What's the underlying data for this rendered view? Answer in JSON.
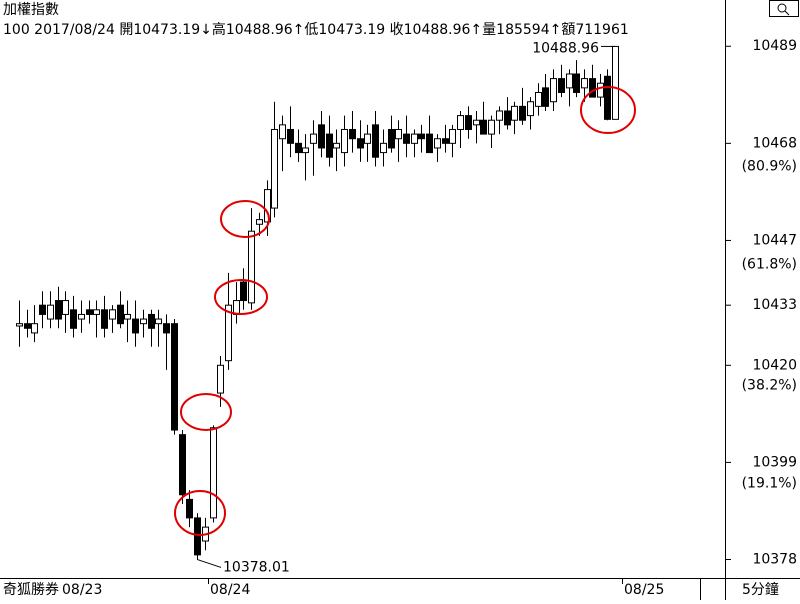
{
  "chart_data": {
    "type": "candlestick",
    "title": "加權指數",
    "subtitle": "100 2017/08/24 開10473.19↓高10488.96↑低10473.19 收10488.96↑量185594↑額711961",
    "open": [
      10428.5,
      10429,
      10427,
      10433,
      10430,
      10434,
      10431,
      10432,
      10430,
      10432,
      10431,
      10432,
      10430,
      10433,
      10430,
      10430,
      10429,
      10431,
      10429,
      10429,
      10429,
      10405,
      10391,
      10387,
      10382,
      10387,
      10414,
      10421,
      10431,
      10438,
      10433.5,
      10450.5,
      10451,
      10454,
      10469,
      10471,
      10468,
      10466,
      10468,
      10472,
      10470,
      10467,
      10466,
      10471,
      10469,
      10468,
      10472,
      10466,
      10471,
      10469,
      10470,
      10468,
      10470,
      10470,
      10467,
      10469,
      10468,
      10471,
      10474,
      10472,
      10473,
      10470,
      10473,
      10475,
      10473,
      10476,
      10474,
      10476,
      10480,
      10477,
      10482,
      10480,
      10483,
      10480,
      10482,
      10478,
      10482.5,
      10473.19
    ],
    "high": [
      10434,
      10432,
      10433,
      10436,
      10436,
      10437,
      10436,
      10435,
      10434,
      10434,
      10434,
      10435,
      10433,
      10436,
      10434,
      10434,
      10432,
      10432,
      10432,
      10431,
      10430,
      10406,
      10393,
      10388,
      10387,
      10407,
      10422,
      10440,
      10438,
      10441,
      10454,
      10453,
      10460,
      10477,
      10474,
      10476,
      10471,
      10470,
      10473,
      10475,
      10474,
      10471,
      10474,
      10475,
      10473,
      10472,
      10475,
      10471,
      10474,
      10473,
      10474,
      10471,
      10472,
      10474,
      10470,
      10472,
      10472,
      10475,
      10476,
      10475,
      10477,
      10474,
      10476,
      10478,
      10477,
      10480,
      10478,
      10481,
      10483,
      10484,
      10485,
      10484,
      10486,
      10484,
      10485,
      10483,
      10484,
      10488.96
    ],
    "low": [
      10424,
      10426,
      10425,
      10428,
      10428,
      10428,
      10427,
      10426,
      10427,
      10429,
      10426,
      10426,
      10427,
      10428,
      10425,
      10424,
      10426,
      10424,
      10424,
      10419,
      10405,
      10390,
      10385,
      10378.01,
      10380,
      10386,
      10411,
      10419,
      10429,
      10432,
      10432,
      10448,
      10448,
      10452,
      10462,
      10465,
      10464,
      10460,
      10461,
      10465,
      10463,
      10462,
      10463,
      10466,
      10464,
      10464,
      10463,
      10463,
      10466,
      10464,
      10465,
      10465,
      10466,
      10466,
      10464,
      10466,
      10465,
      10467,
      10469,
      10468,
      10470,
      10467,
      10470,
      10471,
      10470,
      10472,
      10471,
      10474,
      10475,
      10475,
      10478,
      10476,
      10478,
      10477,
      10478,
      10476,
      10473,
      10473.19
    ],
    "close": [
      10429,
      10428,
      10429,
      10431,
      10433,
      10430,
      10434,
      10428,
      10431,
      10431,
      10432,
      10428,
      10432,
      10429,
      10431,
      10427,
      10430,
      10428,
      10430,
      10427,
      10406,
      10392,
      10387,
      10379,
      10385,
      10406.5,
      10420,
      10433,
      10434,
      10434,
      10449,
      10451.5,
      10458,
      10471,
      10472,
      10468,
      10466,
      10467,
      10470,
      10467,
      10465,
      10468,
      10471,
      10469,
      10467,
      10470,
      10465,
      10468,
      10467,
      10471,
      10468,
      10470,
      10469,
      10466,
      10469,
      10468,
      10471,
      10474,
      10471,
      10473,
      10470,
      10473,
      10475,
      10472,
      10476,
      10473,
      10477,
      10479,
      10476,
      10482,
      10479,
      10483,
      10479,
      10482,
      10478,
      10481,
      10473.19,
      10488.96
    ],
    "ylim": [
      10374,
      10499
    ],
    "yticks": [
      10378,
      10399,
      10420,
      10433,
      10447,
      10468,
      10489
    ],
    "retracements": [
      {
        "value": 80.9,
        "label": "(80.9%)"
      },
      {
        "value": 61.8,
        "label": "(61.8%)"
      },
      {
        "value": 38.2,
        "label": "(38.2%)"
      },
      {
        "value": 19.1,
        "label": "(19.1%)"
      }
    ],
    "high_label": 10488.96,
    "low_label": 10378.01,
    "x_labels": [
      "08/23",
      "08/24",
      "08/25"
    ],
    "brand": "奇狐勝券",
    "interval": "5分鐘",
    "up_color": "#ffffff",
    "down_color": "#000000"
  }
}
